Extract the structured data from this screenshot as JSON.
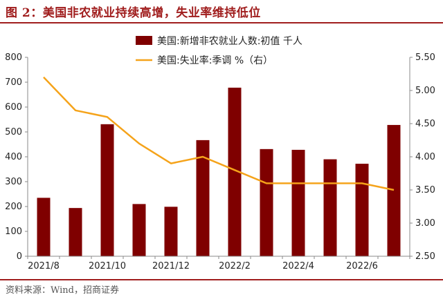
{
  "header": {
    "title": "图 2：美国非农就业持续高增，失业率维持低位"
  },
  "footer": {
    "source": "资料来源：Wind，招商证券"
  },
  "colors": {
    "bar": "#7f0000",
    "line": "#f5a31a",
    "accent": "#a01d1d"
  },
  "chart_data": {
    "type": "bar",
    "categories": [
      "2021/8",
      "2021/9",
      "2021/10",
      "2021/11",
      "2021/12",
      "2022/1",
      "2022/2",
      "2022/3",
      "2022/4",
      "2022/5",
      "2022/6",
      "2022/7"
    ],
    "x_tick_labels": [
      "2021/8",
      "2021/10",
      "2021/12",
      "2022/2",
      "2022/4",
      "2022/6"
    ],
    "x_tick_indices": [
      0,
      2,
      4,
      6,
      8,
      10
    ],
    "series": [
      {
        "name": "美国:新增非农就业人数:初值 千人",
        "type": "bar",
        "axis": "left",
        "values": [
          235,
          194,
          531,
          210,
          199,
          467,
          678,
          431,
          428,
          390,
          372,
          528
        ]
      },
      {
        "name": "美国:失业率:季调 %（右）",
        "type": "line",
        "axis": "right",
        "values": [
          5.2,
          4.7,
          4.6,
          4.2,
          3.9,
          4.0,
          3.8,
          3.6,
          3.6,
          3.6,
          3.6,
          3.5
        ]
      }
    ],
    "left_axis": {
      "ylim": [
        0,
        800
      ],
      "ticks": [
        "0",
        "100",
        "200",
        "300",
        "400",
        "500",
        "600",
        "700",
        "800"
      ]
    },
    "right_axis": {
      "ylim": [
        2.5,
        5.5
      ],
      "ticks": [
        "2.50",
        "3.00",
        "3.50",
        "4.00",
        "4.50",
        "5.00",
        "5.50"
      ]
    },
    "legend_position": "top-center",
    "grid": false
  }
}
